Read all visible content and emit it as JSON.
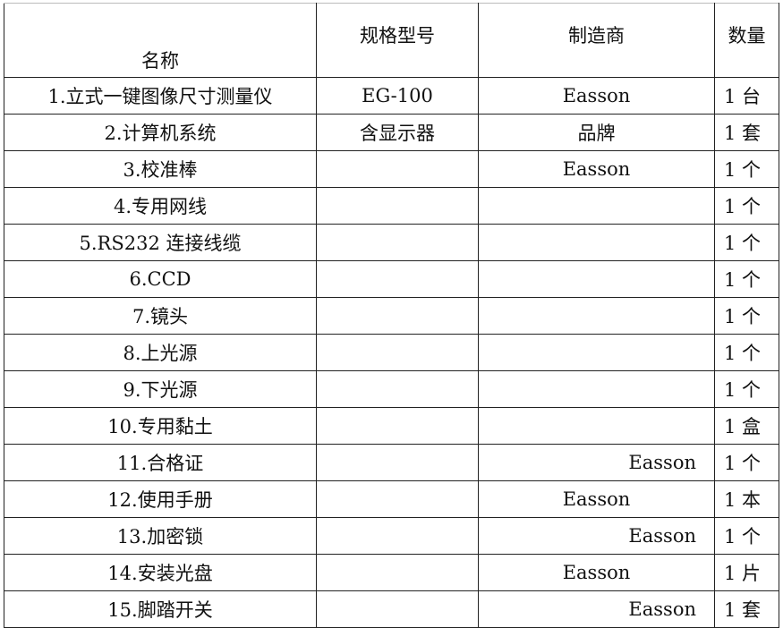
{
  "headers": {
    "name": "名称",
    "model": "规格型号",
    "maker": "制造商",
    "qty": "数量"
  },
  "rows": [
    {
      "name": "1.立式一键图像尺寸测量仪",
      "model": "EG-100",
      "maker": "Easson",
      "maker_align": "center",
      "qty": "1 台"
    },
    {
      "name": "2.计算机系统",
      "model": "含显示器",
      "maker": "品牌",
      "maker_align": "center",
      "qty": "1 套"
    },
    {
      "name": "3.校准棒",
      "model": "",
      "maker": "Easson",
      "maker_align": "center",
      "qty": "1 个"
    },
    {
      "name": "4.专用网线",
      "model": "",
      "maker": "",
      "maker_align": "center",
      "qty": "1 个"
    },
    {
      "name": "5.RS232 连接线缆",
      "model": "",
      "maker": "",
      "maker_align": "center",
      "qty": "1 个"
    },
    {
      "name": "6.CCD",
      "model": "",
      "maker": "",
      "maker_align": "center",
      "qty": "1 个"
    },
    {
      "name": "7.镜头",
      "model": "",
      "maker": "",
      "maker_align": "center",
      "qty": "1 个"
    },
    {
      "name": "8.上光源",
      "model": "",
      "maker": "",
      "maker_align": "center",
      "qty": "1 个"
    },
    {
      "name": "9.下光源",
      "model": "",
      "maker": "",
      "maker_align": "center",
      "qty": "1 个"
    },
    {
      "name": "10.专用黏土",
      "model": "",
      "maker": "",
      "maker_align": "center",
      "qty": "1 盒"
    },
    {
      "name": "11.合格证",
      "model": "",
      "maker": "Easson",
      "maker_align": "right",
      "qty": "1 个"
    },
    {
      "name": "12.使用手册",
      "model": "",
      "maker": "Easson",
      "maker_align": "center",
      "qty": "1 本"
    },
    {
      "name": "13.加密锁",
      "model": "",
      "maker": "Easson",
      "maker_align": "right",
      "qty": "1 个"
    },
    {
      "name": "14.安装光盘",
      "model": "",
      "maker": "Easson",
      "maker_align": "center",
      "qty": "1 片"
    },
    {
      "name": "15.脚踏开关",
      "model": "",
      "maker": "Easson",
      "maker_align": "right",
      "qty": "1 套"
    }
  ]
}
